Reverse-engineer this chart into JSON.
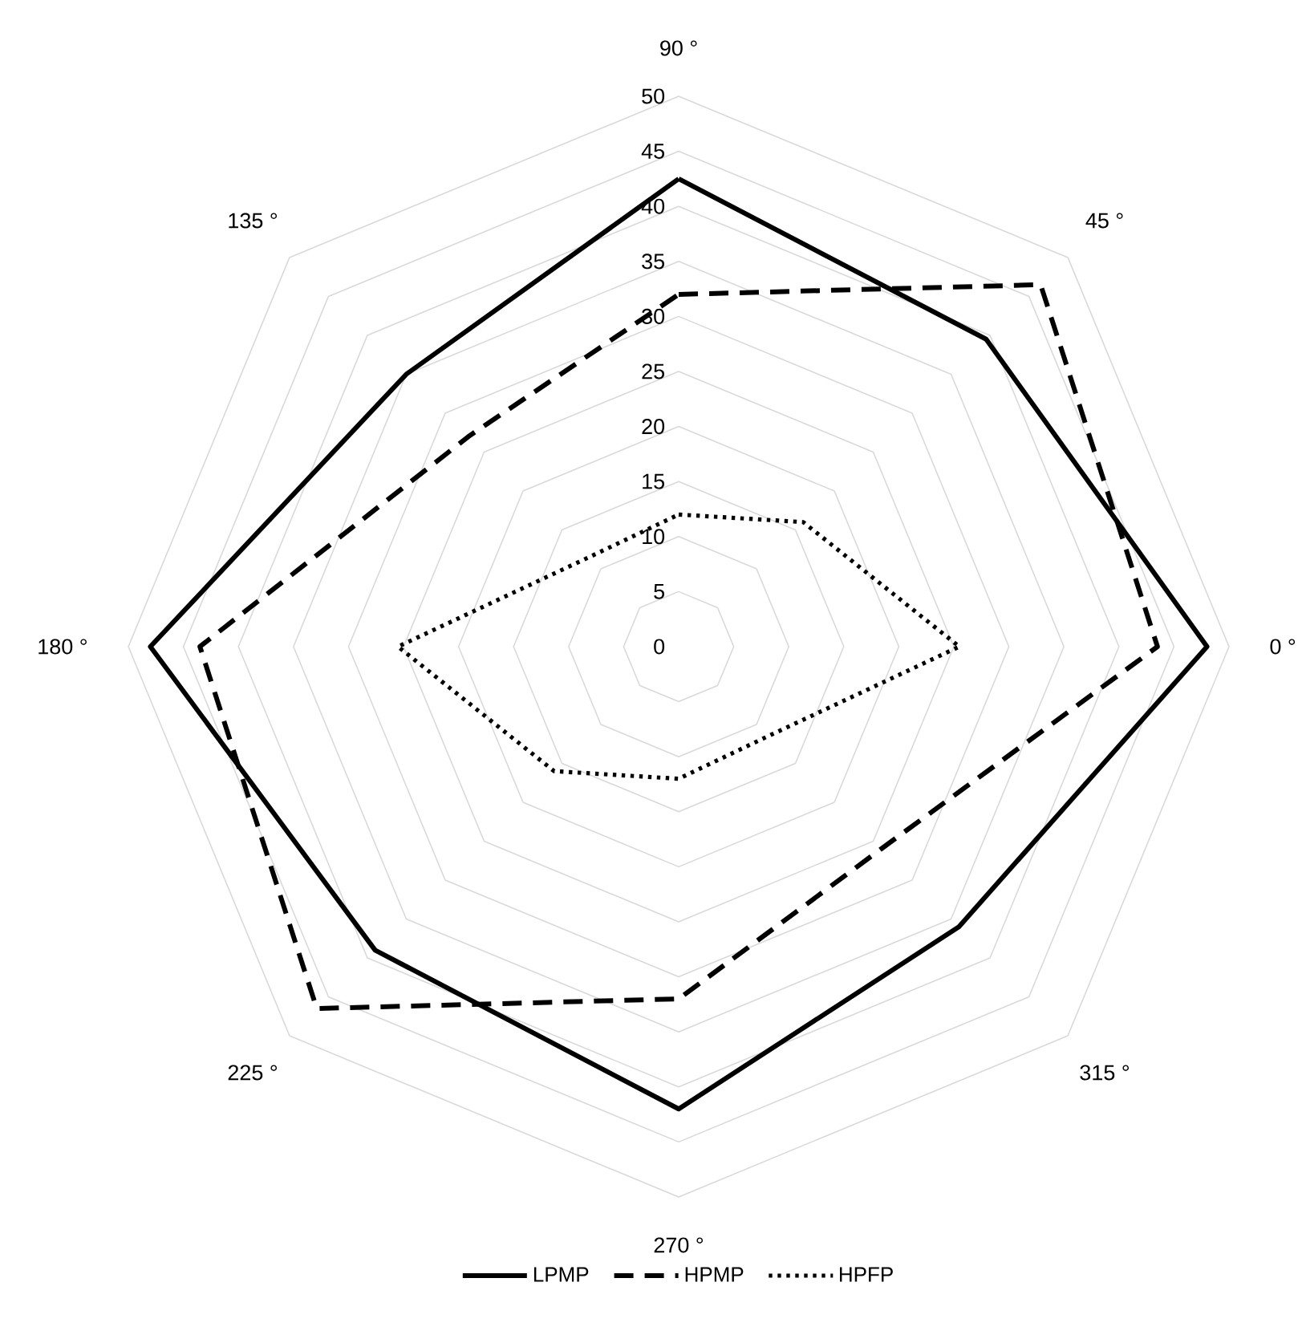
{
  "chart_data": {
    "type": "radar",
    "categories": [
      "90 °",
      "45 °",
      "0 °",
      "315 °",
      "270 °",
      "225 °",
      "180 °",
      "135 °"
    ],
    "series": [
      {
        "name": "LPMP",
        "color": "#000000",
        "line_style": "solid",
        "values": [
          42.5,
          39.5,
          48,
          36,
          42,
          39,
          48,
          35
        ]
      },
      {
        "name": "HPMP",
        "color": "#000000",
        "line_style": "dashed",
        "values": [
          32,
          46.5,
          43.5,
          26,
          32,
          46.5,
          43.5,
          27
        ]
      },
      {
        "name": "HPFP",
        "color": "#000000",
        "line_style": "dotted",
        "values": [
          12,
          16,
          25.5,
          11.5,
          12,
          16,
          25.5,
          11.5
        ]
      }
    ],
    "ylim": [
      0,
      50
    ],
    "yticks": [
      0,
      5,
      10,
      15,
      20,
      25,
      30,
      35,
      40,
      45,
      50
    ],
    "grid": true,
    "legend": "bottom",
    "marker": "none"
  }
}
